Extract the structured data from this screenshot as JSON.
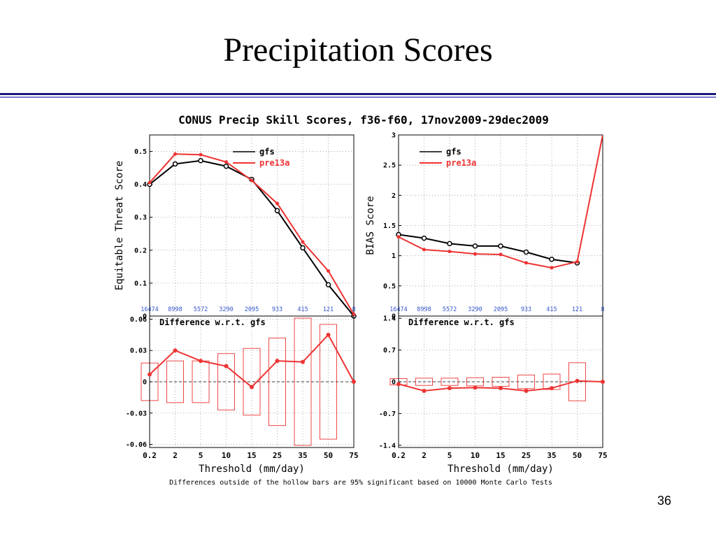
{
  "slide": {
    "title": "Precipitation Scores",
    "page_number": "36",
    "rule_colors": [
      "#1a1a7a",
      "#7a7ad0"
    ]
  },
  "figure": {
    "title": "CONUS Precip Skill Scores, f36-f60, 17nov2009-29dec2009",
    "footnote": "Differences outside of the hollow bars are 95% significant based on 10000 Monte Carlo Tests",
    "colors": {
      "gfs": "#000000",
      "pre13a": "#ee3333",
      "counts": "#3355cc",
      "grid": "#999999"
    }
  },
  "chart_data": [
    {
      "id": "ets",
      "type": "line",
      "ylabel": "Equitable Threat Score",
      "ylim": [
        0,
        0.55
      ],
      "yticks": [
        0,
        0.1,
        0.2,
        0.3,
        0.4,
        0.5
      ],
      "ytick_labels": [
        "0",
        "0.1",
        "0.2",
        "0.3",
        "0.4",
        "0.5"
      ],
      "categories": [
        "0.2",
        "2",
        "5",
        "10",
        "15",
        "25",
        "35",
        "50",
        "75"
      ],
      "count_labels": [
        "16474",
        "8998",
        "5572",
        "3290",
        "2095",
        "933",
        "415",
        "121",
        "8"
      ],
      "grid": true,
      "legend_position": "top-right",
      "series": [
        {
          "name": "gfs",
          "values": [
            0.4,
            0.462,
            0.472,
            0.455,
            0.415,
            0.32,
            0.207,
            0.095,
            0.0
          ]
        },
        {
          "name": "pre13a",
          "values": [
            0.405,
            0.492,
            0.49,
            0.468,
            0.412,
            0.342,
            0.225,
            0.137,
            0.005
          ]
        }
      ]
    },
    {
      "id": "bias",
      "type": "line",
      "ylabel": "BIAS Score",
      "ylim": [
        0,
        3
      ],
      "yticks": [
        0,
        0.5,
        1,
        1.5,
        2,
        2.5,
        3
      ],
      "ytick_labels": [
        "0",
        "0.5",
        "1",
        "1.5",
        "2",
        "2.5",
        "3"
      ],
      "categories": [
        "0.2",
        "2",
        "5",
        "10",
        "15",
        "25",
        "35",
        "50",
        "75"
      ],
      "count_labels": [
        "16474",
        "8998",
        "5572",
        "3290",
        "2095",
        "933",
        "415",
        "121",
        "8"
      ],
      "grid": true,
      "legend_position": "top-left",
      "series": [
        {
          "name": "gfs",
          "values": [
            1.35,
            1.29,
            1.2,
            1.16,
            1.16,
            1.06,
            0.94,
            0.88,
            null
          ]
        },
        {
          "name": "pre13a",
          "values": [
            1.31,
            1.1,
            1.07,
            1.03,
            1.02,
            0.88,
            0.8,
            0.9,
            3.0
          ]
        }
      ]
    },
    {
      "id": "ets-diff",
      "type": "line",
      "title": "Difference w.r.t. gfs",
      "ylim": [
        -0.063,
        0.063
      ],
      "yticks": [
        -0.06,
        -0.03,
        0,
        0.03,
        0.06
      ],
      "ytick_labels": [
        "-0.06",
        "-0.03",
        "0",
        "0.03",
        "0.06"
      ],
      "categories": [
        "0.2",
        "2",
        "5",
        "10",
        "15",
        "25",
        "35",
        "50",
        "75"
      ],
      "xlabel": "Threshold (mm/day)",
      "grid": true,
      "series": [
        {
          "name": "pre13a",
          "values": [
            0.007,
            0.03,
            0.02,
            0.015,
            -0.005,
            0.02,
            0.019,
            0.045,
            0.0
          ]
        }
      ],
      "significance_bars": [
        [
          -0.018,
          0.018
        ],
        [
          -0.02,
          0.02
        ],
        [
          -0.02,
          0.02
        ],
        [
          -0.027,
          0.027
        ],
        [
          -0.032,
          0.032
        ],
        [
          -0.042,
          0.042
        ],
        [
          -0.061,
          0.061
        ],
        [
          -0.055,
          0.055
        ]
      ]
    },
    {
      "id": "bias-diff",
      "type": "line",
      "title": "Difference w.r.t. gfs",
      "ylim": [
        -1.45,
        1.45
      ],
      "yticks": [
        -1.4,
        -0.7,
        0,
        0.7,
        1.4
      ],
      "ytick_labels": [
        "-1.4",
        "-0.7",
        "0",
        "0.7",
        "1.4"
      ],
      "categories": [
        "0.2",
        "2",
        "5",
        "10",
        "15",
        "25",
        "35",
        "50",
        "75"
      ],
      "xlabel": "Threshold (mm/day)",
      "grid": true,
      "series": [
        {
          "name": "pre13a",
          "values": [
            -0.05,
            -0.2,
            -0.14,
            -0.13,
            -0.14,
            -0.2,
            -0.14,
            0.02,
            0.0
          ]
        }
      ],
      "significance_bars": [
        [
          -0.07,
          0.07
        ],
        [
          -0.08,
          0.08
        ],
        [
          -0.08,
          0.08
        ],
        [
          -0.09,
          0.09
        ],
        [
          -0.1,
          0.1
        ],
        [
          -0.15,
          0.15
        ],
        [
          -0.17,
          0.17
        ],
        [
          -0.42,
          0.42
        ]
      ]
    }
  ]
}
